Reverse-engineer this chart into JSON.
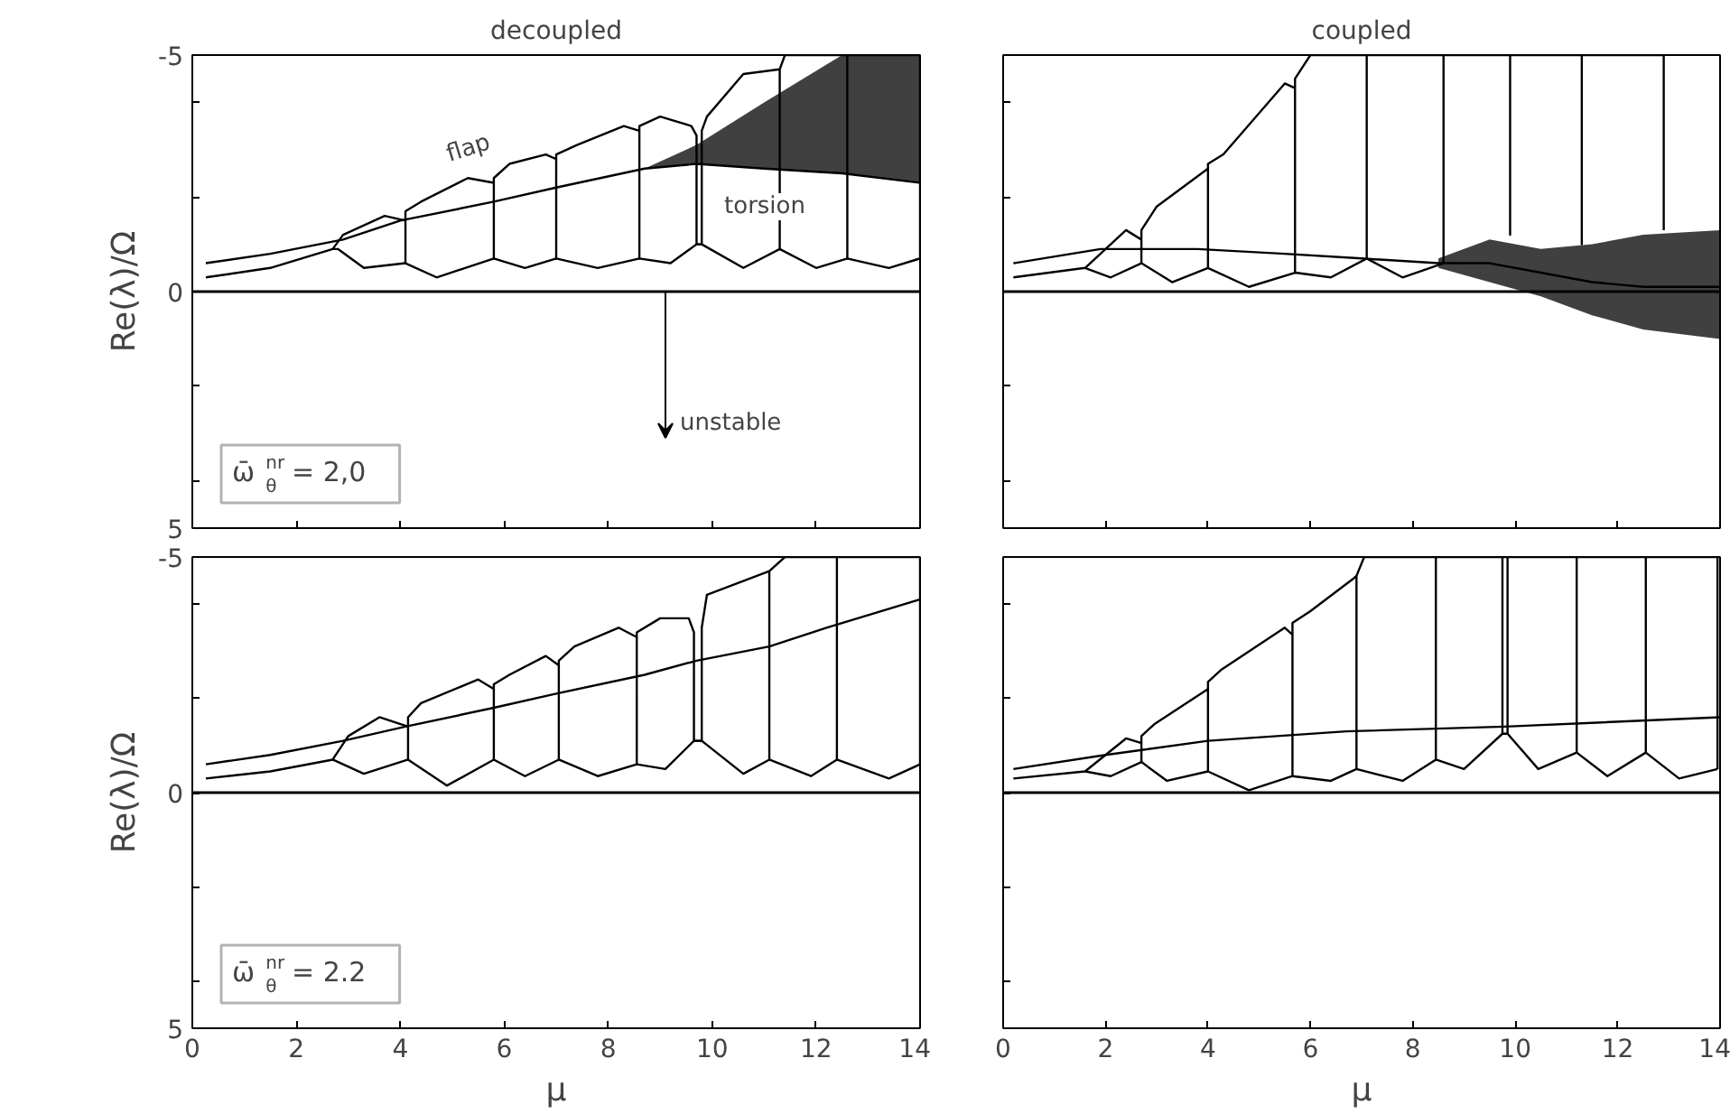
{
  "chart_data": [
    {
      "type": "line",
      "title": "decoupled",
      "ylabel": "Re(λ)/Ω",
      "xlim": [
        0,
        14
      ],
      "xticks": [
        0,
        2,
        4,
        6,
        8,
        10,
        12,
        14
      ],
      "ylim": [
        5,
        -5
      ],
      "yticks": [
        5,
        {
          "value": 4,
          "label": null
        },
        {
          "value": 2,
          "label": null
        },
        0,
        {
          "value": -2,
          "label": null
        },
        {
          "value": -4,
          "label": null
        },
        -5
      ],
      "tick_labels": "y",
      "ref_lines": [
        {
          "axis": "y",
          "value": 0,
          "color": "#000000"
        }
      ],
      "annotations": [
        "flap",
        "torsion",
        "unstable",
        "ω̄$^{nr}$$_{θ}$ = 2,0"
      ],
      "series": [
        {
          "color": "#000000",
          "x": [
            0.26,
            1.5,
            2.9,
            4.0,
            5.8,
            7.0,
            8.7,
            9.7,
            11,
            12.5,
            14
          ],
          "values": [
            -0.6,
            -0.8,
            -1.1,
            -1.5,
            -1.9,
            -2.2,
            -2.6,
            -2.7,
            -2.6,
            -2.5,
            -2.3
          ],
          "lower": [
            null,
            null,
            null,
            null,
            null,
            null,
            -2.6,
            -2.7,
            -2.6,
            -2.5,
            -2.3
          ],
          "upper": [
            null,
            null,
            null,
            null,
            null,
            null,
            -2.6,
            -3.1,
            -4.0,
            -5,
            -5
          ]
        },
        {
          "color": "#000000",
          "x": [
            0.26,
            1.5,
            2.7,
            2.9,
            3.7,
            4.1,
            4.1,
            4.1,
            4.4,
            5.3,
            5.8,
            5.8,
            5.8,
            6.1,
            6.8,
            7.0,
            7.0,
            7.0,
            7.4,
            8.3,
            8.6,
            8.6,
            8.6,
            9.0,
            9.6,
            9.7,
            9.7,
            9.8,
            9.8,
            9.9,
            10.6,
            11.3,
            11.3,
            11.3,
            11.4,
            12.6,
            12.6,
            12.6,
            14,
            14
          ],
          "values": [
            -0.3,
            -0.5,
            -0.9,
            -1.2,
            -1.6,
            -1.5,
            -0.6,
            -1.7,
            -1.9,
            -2.4,
            -2.3,
            -0.7,
            -2.4,
            -2.7,
            -2.9,
            -2.8,
            -0.7,
            -2.9,
            -3.1,
            -3.5,
            -3.4,
            -0.7,
            -3.5,
            -3.7,
            -3.5,
            -3.3,
            -1.0,
            -1.0,
            -3.4,
            -3.7,
            -4.6,
            -4.7,
            -0.9,
            -4.7,
            -5,
            -5,
            -0.7,
            -5,
            -5,
            -0.7
          ]
        },
        {
          "color": "#000000",
          "x": [
            2.7,
            2.8,
            3.3,
            4.1,
            4.7,
            5.8,
            6.4,
            7.0,
            7.8,
            8.6,
            9.2,
            9.7,
            9.8,
            10.6,
            11.3,
            12.0,
            12.6,
            13.4,
            14
          ],
          "values": [
            -0.9,
            -0.9,
            -0.5,
            -0.6,
            -0.3,
            -0.7,
            -0.5,
            -0.7,
            -0.5,
            -0.7,
            -0.6,
            -1.0,
            -1.0,
            -0.5,
            -0.9,
            -0.5,
            -0.7,
            -0.5,
            -0.7
          ]
        }
      ]
    },
    {
      "type": "line",
      "title": "coupled",
      "xlim": [
        0,
        14
      ],
      "xticks": [
        0,
        2,
        4,
        6,
        8,
        10,
        12,
        14
      ],
      "ylim": [
        5,
        -5
      ],
      "yticks": [
        5,
        {
          "value": 4,
          "label": null
        },
        {
          "value": 2,
          "label": null
        },
        0,
        {
          "value": -2,
          "label": null
        },
        {
          "value": -4,
          "label": null
        },
        -5
      ],
      "tick_labels": false,
      "ref_lines": [
        {
          "axis": "y",
          "value": 0,
          "color": "#000000"
        }
      ],
      "series": [
        {
          "color": "#000000",
          "x": [
            0.2,
            1.9,
            3.8,
            5.5,
            7.0,
            8.5,
            9.5,
            10.5,
            11.5,
            12.5,
            14
          ],
          "values": [
            -0.6,
            -0.9,
            -0.9,
            -0.8,
            -0.7,
            -0.6,
            -0.6,
            -0.4,
            -0.2,
            -0.1,
            -0.1
          ],
          "lower": [
            null,
            null,
            null,
            null,
            null,
            -0.5,
            -0.2,
            0.1,
            0.5,
            0.8,
            1.0
          ],
          "upper": [
            null,
            null,
            null,
            null,
            null,
            -0.7,
            -1.1,
            -0.9,
            -1.0,
            -1.2,
            -1.3
          ]
        },
        {
          "color": "#000000",
          "x": [
            0.2,
            1.6,
            2.4,
            2.7,
            2.7,
            2.7,
            3.0,
            4.0,
            4.0,
            4.0,
            4.3,
            5.5,
            5.7,
            5.7,
            5.7,
            6.0,
            7.1,
            7.1,
            7.1,
            8.6,
            8.6,
            8.6,
            9.9,
            9.9,
            9.9,
            11.3,
            11.3,
            11.3,
            12.9,
            12.9
          ],
          "values": [
            -0.3,
            -0.5,
            -1.3,
            -1.1,
            -0.6,
            -1.3,
            -1.8,
            -2.6,
            -0.5,
            -2.7,
            -2.9,
            -4.4,
            -4.3,
            -0.4,
            -4.5,
            -5,
            -5,
            -0.7,
            -5,
            -5,
            -0.6,
            -5,
            -5,
            -1.2,
            -5,
            -5,
            -1.0,
            -5,
            -5,
            -1.3
          ]
        },
        {
          "color": "#000000",
          "x": [
            1.6,
            2.1,
            2.7,
            3.3,
            4.0,
            4.8,
            5.7,
            6.4,
            7.1,
            7.8,
            8.6
          ],
          "values": [
            -0.5,
            -0.3,
            -0.6,
            -0.2,
            -0.5,
            -0.1,
            -0.4,
            -0.3,
            -0.7,
            -0.3,
            -0.6
          ]
        }
      ]
    },
    {
      "type": "line",
      "xlabel": "μ",
      "ylabel": "Re(λ)/Ω",
      "xlim": [
        0,
        14
      ],
      "xticks": [
        0,
        2,
        4,
        6,
        8,
        10,
        12,
        14
      ],
      "ylim": [
        5,
        -5
      ],
      "yticks": [
        5,
        {
          "value": 4,
          "label": null
        },
        {
          "value": 2,
          "label": null
        },
        0,
        {
          "value": -2,
          "label": null
        },
        {
          "value": -4,
          "label": null
        },
        -5
      ],
      "ref_lines": [
        {
          "axis": "y",
          "value": 0,
          "color": "#000000"
        }
      ],
      "annotations": [
        "ω̄$^{nr}$$_{θ}$ = 2.2"
      ],
      "series": [
        {
          "color": "#000000",
          "x": [
            0.26,
            1.5,
            2.9,
            4.1,
            5.8,
            7.0,
            8.7,
            9.7,
            11.1,
            12.2,
            14
          ],
          "values": [
            -0.6,
            -0.8,
            -1.1,
            -1.4,
            -1.8,
            -2.1,
            -2.5,
            -2.8,
            -3.1,
            -3.5,
            -4.1
          ]
        },
        {
          "color": "#000000",
          "x": [
            0.26,
            1.5,
            2.7,
            3.0,
            3.6,
            4.15,
            4.15,
            4.15,
            4.4,
            5.5,
            5.8,
            5.8,
            5.8,
            6.1,
            6.8,
            7.05,
            7.05,
            7.05,
            7.35,
            8.2,
            8.55,
            8.55,
            8.55,
            9.0,
            9.55,
            9.65,
            9.65,
            9.8,
            9.8,
            9.9,
            11.1,
            11.1,
            11.1,
            11.4,
            12.4,
            12.4,
            12.4,
            14,
            14
          ],
          "values": [
            -0.3,
            -0.45,
            -0.7,
            -1.2,
            -1.6,
            -1.4,
            -0.7,
            -1.6,
            -1.9,
            -2.4,
            -2.2,
            -0.7,
            -2.3,
            -2.5,
            -2.9,
            -2.7,
            -0.7,
            -2.8,
            -3.1,
            -3.5,
            -3.3,
            -0.6,
            -3.4,
            -3.7,
            -3.7,
            -3.4,
            -1.1,
            -1.1,
            -3.5,
            -4.2,
            -4.7,
            -0.7,
            -4.7,
            -5,
            -5,
            -0.7,
            -5,
            -5,
            -0.6
          ]
        },
        {
          "color": "#000000",
          "x": [
            2.7,
            3.3,
            4.15,
            4.9,
            5.8,
            6.4,
            7.05,
            7.8,
            8.55,
            9.1,
            9.65,
            9.8,
            10.6,
            11.1,
            11.9,
            12.4,
            13.4,
            14
          ],
          "values": [
            -0.7,
            -0.4,
            -0.7,
            -0.15,
            -0.7,
            -0.35,
            -0.7,
            -0.35,
            -0.6,
            -0.5,
            -1.1,
            -1.1,
            -0.4,
            -0.7,
            -0.35,
            -0.7,
            -0.3,
            -0.6
          ]
        }
      ]
    },
    {
      "type": "line",
      "xlabel": "μ",
      "xlim": [
        0,
        14
      ],
      "xticks": [
        0,
        2,
        4,
        6,
        8,
        10,
        12,
        14
      ],
      "ylim": [
        5,
        -5
      ],
      "yticks": [
        5,
        {
          "value": 4,
          "label": null
        },
        {
          "value": 2,
          "label": null
        },
        0,
        {
          "value": -2,
          "label": null
        },
        {
          "value": -4,
          "label": null
        },
        -5
      ],
      "tick_labels": "x",
      "ref_lines": [
        {
          "axis": "y",
          "value": 0,
          "color": "#000000"
        }
      ],
      "series": [
        {
          "color": "#000000",
          "x": [
            0.2,
            2.0,
            4.0,
            6.7,
            9.8,
            14
          ],
          "values": [
            -0.5,
            -0.8,
            -1.1,
            -1.3,
            -1.4,
            -1.6
          ]
        },
        {
          "color": "#000000",
          "x": [
            0.2,
            1.6,
            2.4,
            2.7,
            2.7,
            2.7,
            2.95,
            4.0,
            4.0,
            4.0,
            4.25,
            5.5,
            5.65,
            5.65,
            5.65,
            6.0,
            6.85,
            6.9,
            6.9,
            6.9,
            7.05,
            8.45,
            8.45,
            8.45,
            9.75,
            9.75,
            9.75,
            9.85,
            9.85,
            9.85,
            11.2,
            11.2,
            11.2,
            12.55,
            12.55,
            12.55,
            13.95,
            13.95
          ],
          "values": [
            -0.3,
            -0.45,
            -1.15,
            -1.05,
            -0.65,
            -1.2,
            -1.45,
            -2.2,
            -0.45,
            -2.35,
            -2.6,
            -3.5,
            -3.35,
            -0.35,
            -3.6,
            -3.85,
            -4.55,
            -4.6,
            -0.5,
            -4.6,
            -5,
            -5,
            -0.7,
            -5,
            -5,
            -1.25,
            -5,
            -5,
            -1.25,
            -5,
            -5,
            -0.85,
            -5,
            -5,
            -0.85,
            -5,
            -5,
            -0.5
          ]
        },
        {
          "color": "#000000",
          "x": [
            1.6,
            2.1,
            2.7,
            3.2,
            4.0,
            4.8,
            5.65,
            6.4,
            6.9,
            7.8,
            8.45,
            9.0,
            9.75,
            9.85,
            10.45,
            11.2,
            11.8,
            12.55,
            13.2,
            13.95
          ],
          "values": [
            -0.45,
            -0.35,
            -0.65,
            -0.25,
            -0.45,
            -0.05,
            -0.35,
            -0.25,
            -0.5,
            -0.25,
            -0.7,
            -0.5,
            -1.25,
            -1.25,
            -0.5,
            -0.85,
            -0.35,
            -0.85,
            -0.3,
            -0.5
          ]
        }
      ]
    }
  ]
}
